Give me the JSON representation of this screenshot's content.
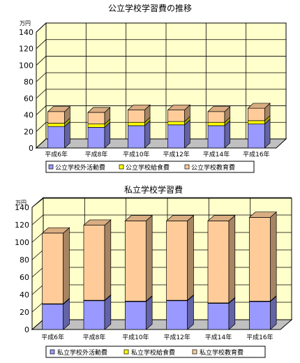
{
  "chart_data": [
    {
      "type": "bar",
      "stacked": true,
      "title": "公立学校学習費の推移",
      "y_unit": "万円",
      "ylim": [
        0,
        140
      ],
      "yticks": [
        0,
        20,
        40,
        60,
        80,
        100,
        120,
        140
      ],
      "grid": true,
      "legend_position": "bottom",
      "categories": [
        "平成6年",
        "平成8年",
        "平成10年",
        "平成12年",
        "平成14年",
        "平成16年"
      ],
      "series": [
        {
          "name": "公立学校外活動費",
          "color": "#9999ff",
          "values": [
            26,
            25,
            27,
            28,
            27,
            29
          ]
        },
        {
          "name": "公立学校給食費",
          "color": "#ffff00",
          "values": [
            4,
            4,
            4,
            4,
            4,
            4
          ]
        },
        {
          "name": "公立学校教育費",
          "color": "#ffcc99",
          "values": [
            14,
            14,
            15,
            14,
            13,
            15
          ]
        }
      ]
    },
    {
      "type": "bar",
      "stacked": true,
      "title": "私立学校学習費",
      "y_unit": "万円",
      "ylim": [
        0,
        140
      ],
      "yticks": [
        0,
        20,
        40,
        60,
        80,
        100,
        120,
        140
      ],
      "grid": true,
      "legend_position": "bottom",
      "categories": [
        "平成6年",
        "平成8年",
        "平成10年",
        "平成12年",
        "平成14年",
        "平成16年"
      ],
      "series": [
        {
          "name": "私立学校外活動費",
          "color": "#9999ff",
          "values": [
            29,
            33,
            32,
            33,
            30,
            32
          ]
        },
        {
          "name": "私立学校給食費",
          "color": "#ffff00",
          "values": [
            0.5,
            0.5,
            0.5,
            0.5,
            0.5,
            0.5
          ]
        },
        {
          "name": "私立学校教育費",
          "color": "#ffcc99",
          "values": [
            81,
            86,
            92,
            91,
            94,
            96
          ]
        }
      ]
    }
  ]
}
